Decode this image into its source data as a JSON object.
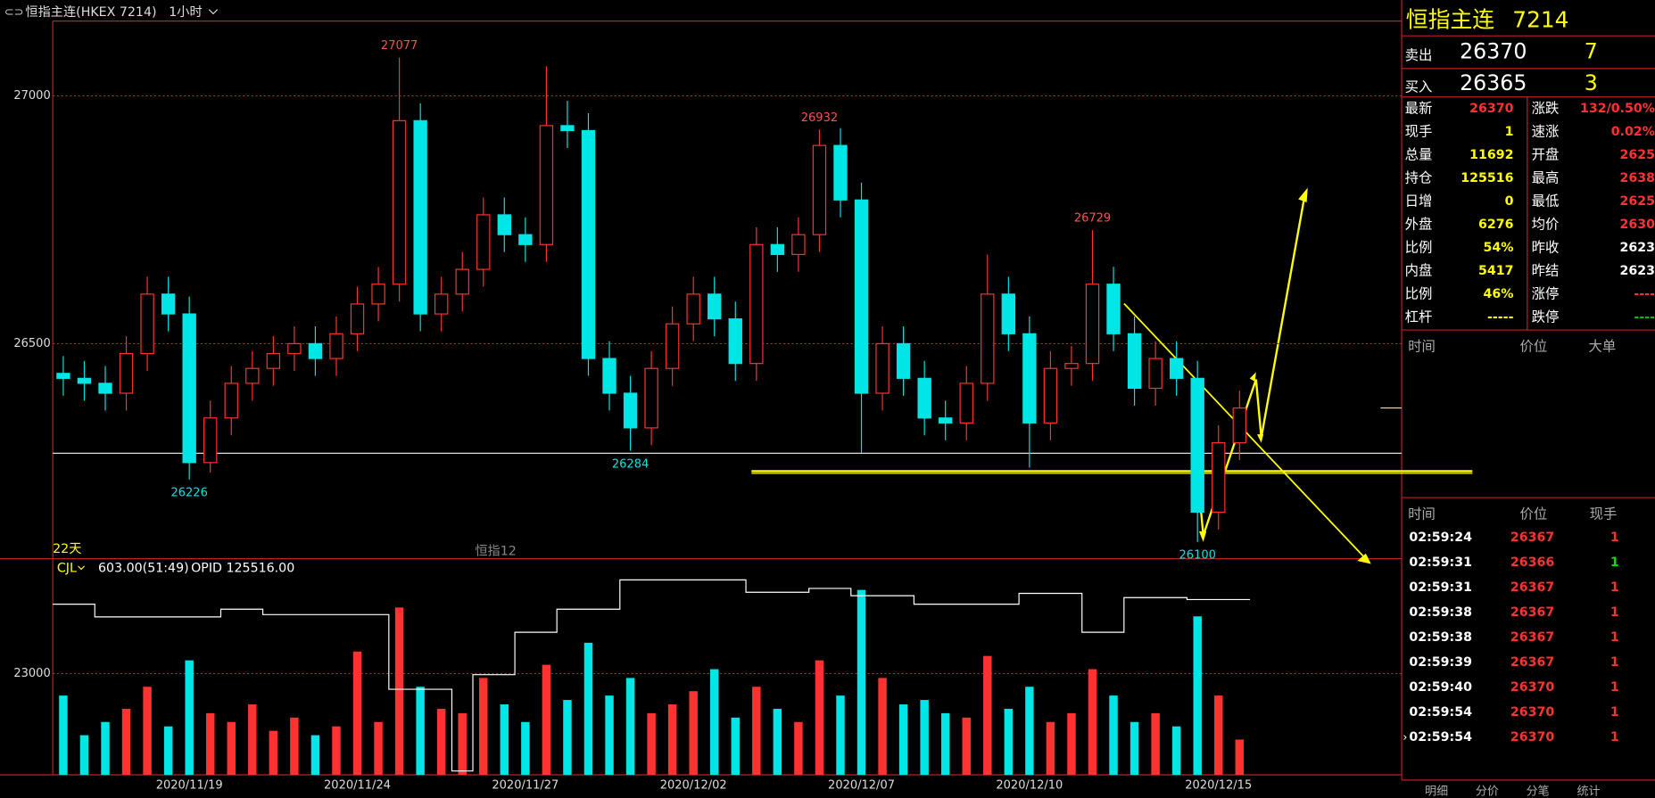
{
  "header": {
    "title": "恒指主连(HKEX 7214)",
    "period": "1小时"
  },
  "chart_data": [
    {
      "type": "candlestick",
      "up_color": "#ff3232",
      "down_color": "#00e5e5",
      "grid": true,
      "categories": [
        null,
        null,
        null,
        null,
        null,
        null,
        "2020/11/19",
        null,
        null,
        null,
        null,
        null,
        null,
        null,
        "2020/11/24",
        null,
        null,
        null,
        null,
        null,
        null,
        null,
        "2020/11/27",
        null,
        null,
        null,
        null,
        null,
        null,
        null,
        "2020/12/02",
        null,
        null,
        null,
        null,
        null,
        null,
        null,
        "2020/12/07",
        null,
        null,
        null,
        null,
        null,
        null,
        null,
        "2020/12/10",
        null,
        null,
        null,
        null,
        null,
        null,
        null,
        null,
        "2020/12/15",
        null
      ],
      "ohlc": [
        [
          26440,
          26475,
          26395,
          26430
        ],
        [
          26430,
          26465,
          26385,
          26420
        ],
        [
          26420,
          26455,
          26365,
          26400
        ],
        [
          26400,
          26515,
          26365,
          26480
        ],
        [
          26480,
          26635,
          26445,
          26600
        ],
        [
          26600,
          26635,
          26525,
          26560
        ],
        [
          26560,
          26595,
          26226,
          26260
        ],
        [
          26260,
          26385,
          26240,
          26350
        ],
        [
          26350,
          26455,
          26315,
          26420
        ],
        [
          26420,
          26485,
          26385,
          26450
        ],
        [
          26450,
          26515,
          26415,
          26480
        ],
        [
          26480,
          26535,
          26445,
          26500
        ],
        [
          26500,
          26535,
          26435,
          26470
        ],
        [
          26470,
          26555,
          26435,
          26520
        ],
        [
          26520,
          26615,
          26485,
          26580
        ],
        [
          26580,
          26655,
          26545,
          26620
        ],
        [
          26620,
          27077,
          26585,
          26950
        ],
        [
          26950,
          26985,
          26525,
          26560
        ],
        [
          26560,
          26635,
          26525,
          26600
        ],
        [
          26600,
          26685,
          26565,
          26650
        ],
        [
          26650,
          26795,
          26615,
          26760
        ],
        [
          26760,
          26795,
          26685,
          26720
        ],
        [
          26720,
          26755,
          26665,
          26700
        ],
        [
          26700,
          27060,
          26665,
          26940
        ],
        [
          26940,
          26990,
          26895,
          26930
        ],
        [
          26930,
          26965,
          26435,
          26470
        ],
        [
          26470,
          26505,
          26365,
          26400
        ],
        [
          26400,
          26435,
          26284,
          26330
        ],
        [
          26330,
          26485,
          26295,
          26450
        ],
        [
          26450,
          26575,
          26415,
          26540
        ],
        [
          26540,
          26635,
          26505,
          26600
        ],
        [
          26600,
          26635,
          26515,
          26550
        ],
        [
          26550,
          26585,
          26425,
          26460
        ],
        [
          26460,
          26735,
          26425,
          26700
        ],
        [
          26700,
          26735,
          26645,
          26680
        ],
        [
          26680,
          26755,
          26645,
          26720
        ],
        [
          26720,
          26932,
          26685,
          26900
        ],
        [
          26900,
          26935,
          26755,
          26790
        ],
        [
          26790,
          26825,
          26280,
          26400
        ],
        [
          26400,
          26535,
          26365,
          26500
        ],
        [
          26500,
          26535,
          26395,
          26430
        ],
        [
          26430,
          26465,
          26315,
          26350
        ],
        [
          26350,
          26385,
          26305,
          26340
        ],
        [
          26340,
          26455,
          26305,
          26420
        ],
        [
          26420,
          26680,
          26385,
          26600
        ],
        [
          26600,
          26635,
          26485,
          26520
        ],
        [
          26520,
          26555,
          26250,
          26340
        ],
        [
          26340,
          26485,
          26305,
          26450
        ],
        [
          26450,
          26495,
          26415,
          26460
        ],
        [
          26460,
          26729,
          26425,
          26620
        ],
        [
          26620,
          26655,
          26485,
          26520
        ],
        [
          26520,
          26555,
          26375,
          26410
        ],
        [
          26410,
          26505,
          26375,
          26470
        ],
        [
          26470,
          26505,
          26395,
          26430
        ],
        [
          26430,
          26465,
          26100,
          26160
        ],
        [
          26160,
          26335,
          26125,
          26300
        ],
        [
          26300,
          26405,
          26265,
          26370
        ]
      ],
      "ylim": [
        26066,
        27151
      ],
      "yticks": [
        26500,
        27000
      ],
      "annotations": [
        {
          "index": 6,
          "value": 26226,
          "position": "below"
        },
        {
          "index": 16,
          "value": 27077,
          "position": "above"
        },
        {
          "index": 27,
          "value": 26284,
          "position": "below"
        },
        {
          "index": 36,
          "value": 26932,
          "position": "above"
        },
        {
          "index": 49,
          "value": 26729,
          "position": "above"
        },
        {
          "index": 54,
          "value": 26100,
          "position": "below"
        }
      ],
      "period_label": "22天",
      "contract_label": "恒指12"
    },
    {
      "type": "bar",
      "indicator": "CJL",
      "info": "603.00(51:49)",
      "legend_text": "OPID 125516.00",
      "values": [
        18000,
        9000,
        12000,
        15000,
        20000,
        11000,
        26000,
        14000,
        12000,
        16000,
        10000,
        13000,
        9000,
        11000,
        28000,
        12000,
        38000,
        20000,
        15000,
        14000,
        22000,
        16000,
        12000,
        25000,
        17000,
        30000,
        18000,
        22000,
        14000,
        16000,
        19000,
        24000,
        13000,
        20000,
        15000,
        12000,
        26000,
        18000,
        42000,
        22000,
        16000,
        17000,
        14000,
        13000,
        27000,
        15000,
        20000,
        12000,
        14000,
        24000,
        18000,
        12000,
        14000,
        11000,
        36000,
        18000,
        8000
      ],
      "ylim": [
        0,
        45500
      ],
      "yticks": [
        23000
      ],
      "y2lim": [
        80000,
        132000
      ],
      "series": [
        {
          "name": "OPID",
          "color": "#ffffff",
          "axis": "y2",
          "values": [
            124300,
            124300,
            121000,
            121000,
            121000,
            121000,
            121000,
            121000,
            123000,
            123000,
            121600,
            121600,
            121600,
            121600,
            121600,
            121600,
            102200,
            102200,
            102200,
            81000,
            106000,
            106000,
            117000,
            117000,
            123000,
            123000,
            123000,
            130600,
            130600,
            130600,
            130600,
            130600,
            130600,
            127400,
            127400,
            127400,
            128400,
            128400,
            126500,
            126500,
            126500,
            124300,
            124300,
            124300,
            124300,
            124300,
            127100,
            127100,
            127100,
            117000,
            117000,
            126000,
            126000,
            126000,
            125500,
            125500,
            125500
          ]
        }
      ]
    }
  ],
  "quote": {
    "name": "恒指主连",
    "code": "7214",
    "ask": {
      "label": "卖出",
      "price": "26370",
      "volume": "7"
    },
    "bid": {
      "label": "买入",
      "price": "26365",
      "volume": "3"
    },
    "left": [
      {
        "label": "最新",
        "value": "26370",
        "color": "#ff3232"
      },
      {
        "label": "现手",
        "value": "1",
        "color": "#ffff00"
      },
      {
        "label": "总量",
        "value": "11692",
        "color": "#ffff00"
      },
      {
        "label": "持仓",
        "value": "125516",
        "color": "#ffff00"
      },
      {
        "label": "日增",
        "value": "0",
        "color": "#ffff00"
      },
      {
        "label": "外盘",
        "value": "6276",
        "color": "#ffff00"
      },
      {
        "label": "比例",
        "value": "54%",
        "color": "#ffff00"
      },
      {
        "label": "内盘",
        "value": "5417",
        "color": "#ffff00"
      },
      {
        "label": "比例",
        "value": "46%",
        "color": "#ffff00"
      },
      {
        "label": "杠杆",
        "value": "-----",
        "color": "#ffff00"
      }
    ],
    "right": [
      {
        "label": "涨跌",
        "value": "132/0.50%",
        "color": "#ff3232"
      },
      {
        "label": "速涨",
        "value": "0.02%",
        "color": "#ff3232"
      },
      {
        "label": "开盘",
        "value": "2625",
        "color": "#ff3232"
      },
      {
        "label": "最高",
        "value": "2638",
        "color": "#ff3232"
      },
      {
        "label": "最低",
        "value": "2625",
        "color": "#ff3232"
      },
      {
        "label": "均价",
        "value": "2630",
        "color": "#ff3232"
      },
      {
        "label": "昨收",
        "value": "2623",
        "color": "#ffffff"
      },
      {
        "label": "昨结",
        "value": "2623",
        "color": "#ffffff"
      },
      {
        "label": "涨停",
        "value": "----",
        "color": "#ff3232"
      },
      {
        "label": "跌停",
        "value": "----",
        "color": "#00c000"
      }
    ],
    "big_orders": {
      "headers": [
        "时间",
        "价位",
        "大单"
      ]
    },
    "trades": {
      "headers": [
        "时间",
        "价位",
        "现手"
      ],
      "rows": [
        {
          "time": "02:59:24",
          "price": "26367",
          "qty": "1",
          "color": "#ff3232"
        },
        {
          "time": "02:59:31",
          "price": "26366",
          "qty": "1",
          "color": "#00e000"
        },
        {
          "time": "02:59:31",
          "price": "26367",
          "qty": "1",
          "color": "#ff3232"
        },
        {
          "time": "02:59:38",
          "price": "26367",
          "qty": "1",
          "color": "#ff3232"
        },
        {
          "time": "02:59:38",
          "price": "26367",
          "qty": "1",
          "color": "#ff3232"
        },
        {
          "time": "02:59:39",
          "price": "26367",
          "qty": "1",
          "color": "#ff3232"
        },
        {
          "time": "02:59:40",
          "price": "26370",
          "qty": "1",
          "color": "#ff3232"
        },
        {
          "time": "02:59:54",
          "price": "26370",
          "qty": "1",
          "color": "#ff3232"
        },
        {
          "time": "02:59:54",
          "price": "26370",
          "qty": "1",
          "color": "#ff3232"
        }
      ]
    },
    "tabs": [
      "明细",
      "分价",
      "分笔",
      "统计"
    ]
  }
}
